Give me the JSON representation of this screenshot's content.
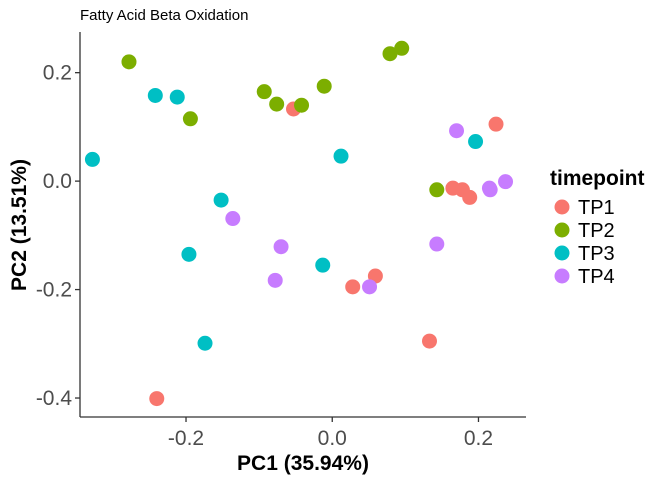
{
  "chart_data": {
    "type": "scatter",
    "title": "Fatty Acid Beta Oxidation",
    "xlabel": "PC1 (35.94%)",
    "ylabel": "PC2 (13.51%)",
    "xlim": [
      -0.345,
      0.265
    ],
    "ylim": [
      -0.435,
      0.275
    ],
    "x_ticks": [
      -0.2,
      0.0,
      0.2
    ],
    "x_tick_labels": [
      "-0.2",
      "0.0",
      "0.2"
    ],
    "y_ticks": [
      -0.4,
      -0.2,
      0.0,
      0.2
    ],
    "y_tick_labels": [
      "-0.4",
      "-0.2",
      "0.0",
      "0.2"
    ],
    "grid": false,
    "legend": {
      "title": "timepoint",
      "position": "right"
    },
    "series": [
      {
        "name": "TP1",
        "color": "#F8766D",
        "points": [
          [
            -0.24,
            -0.401
          ],
          [
            -0.053,
            0.133
          ],
          [
            0.028,
            -0.195
          ],
          [
            0.059,
            -0.175
          ],
          [
            0.133,
            -0.295
          ],
          [
            0.165,
            -0.013
          ],
          [
            0.178,
            -0.016
          ],
          [
            0.188,
            -0.03
          ],
          [
            0.224,
            0.105
          ]
        ]
      },
      {
        "name": "TP2",
        "color": "#7CAE00",
        "points": [
          [
            -0.278,
            0.22
          ],
          [
            -0.093,
            0.165
          ],
          [
            -0.076,
            0.142
          ],
          [
            -0.042,
            0.14
          ],
          [
            -0.011,
            0.175
          ],
          [
            0.079,
            0.235
          ],
          [
            0.095,
            0.245
          ],
          [
            0.143,
            -0.016
          ],
          [
            -0.194,
            0.115
          ]
        ]
      },
      {
        "name": "TP3",
        "color": "#00BFC4",
        "points": [
          [
            -0.328,
            0.04
          ],
          [
            -0.242,
            0.158
          ],
          [
            -0.212,
            0.155
          ],
          [
            -0.152,
            -0.035
          ],
          [
            -0.196,
            -0.135
          ],
          [
            -0.174,
            -0.299
          ],
          [
            -0.013,
            -0.155
          ],
          [
            0.012,
            0.046
          ],
          [
            0.196,
            0.073
          ]
        ]
      },
      {
        "name": "TP4",
        "color": "#C77CFF",
        "points": [
          [
            -0.136,
            -0.069
          ],
          [
            -0.07,
            -0.121
          ],
          [
            -0.078,
            -0.183
          ],
          [
            0.051,
            -0.195
          ],
          [
            0.143,
            -0.116
          ],
          [
            0.17,
            0.093
          ],
          [
            0.215,
            -0.013
          ],
          [
            0.216,
            -0.016
          ],
          [
            0.237,
            -0.001
          ]
        ]
      }
    ]
  }
}
